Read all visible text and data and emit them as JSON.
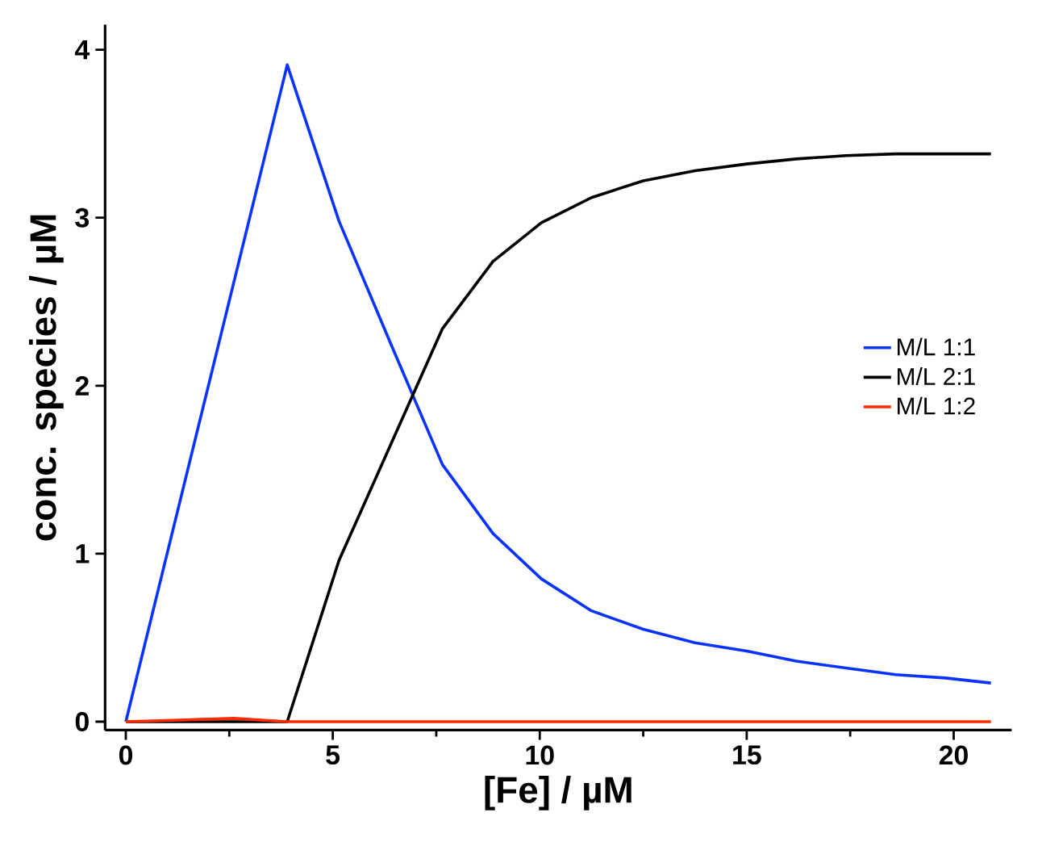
{
  "chart_data": {
    "type": "line",
    "xlabel": "[Fe] / µM",
    "ylabel": "conc. species / µM",
    "xlim": [
      -0.5,
      21.4
    ],
    "ylim": [
      -0.05,
      4.15
    ],
    "xticks": [
      0,
      5,
      10,
      15,
      20
    ],
    "yticks": [
      0,
      1,
      2,
      3,
      4
    ],
    "grid": false,
    "legend": "right",
    "marker": "none",
    "line_style": "solid",
    "series": [
      {
        "name": "M/L 1:1",
        "color": "#0a33ff",
        "x": [
          0,
          3.9,
          5.15,
          6.4,
          7.65,
          8.87,
          10.04,
          11.25,
          12.5,
          13.75,
          15,
          16.2,
          17.4,
          18.6,
          19.8,
          20.9
        ],
        "values": [
          0,
          3.91,
          2.98,
          2.25,
          1.53,
          1.12,
          0.85,
          0.66,
          0.55,
          0.47,
          0.42,
          0.36,
          0.32,
          0.28,
          0.26,
          0.23
        ]
      },
      {
        "name": "M/L 2:1",
        "color": "#000000",
        "x": [
          0,
          1.3,
          2.6,
          3.9,
          5.15,
          6.4,
          7.65,
          8.87,
          10.04,
          11.25,
          12.5,
          13.75,
          15,
          16.2,
          17.4,
          18.6,
          19.8,
          20.9
        ],
        "values": [
          0,
          0,
          0,
          0,
          0.96,
          1.65,
          2.34,
          2.74,
          2.97,
          3.12,
          3.22,
          3.28,
          3.32,
          3.35,
          3.37,
          3.38,
          3.38,
          3.38
        ]
      },
      {
        "name": "M/L 1:2",
        "color": "#ff2a00",
        "x": [
          0,
          1.3,
          2.6,
          3.9,
          5.15,
          10.04,
          15,
          20.9
        ],
        "values": [
          0,
          0.01,
          0.02,
          0,
          0,
          0,
          0,
          0
        ]
      }
    ]
  }
}
